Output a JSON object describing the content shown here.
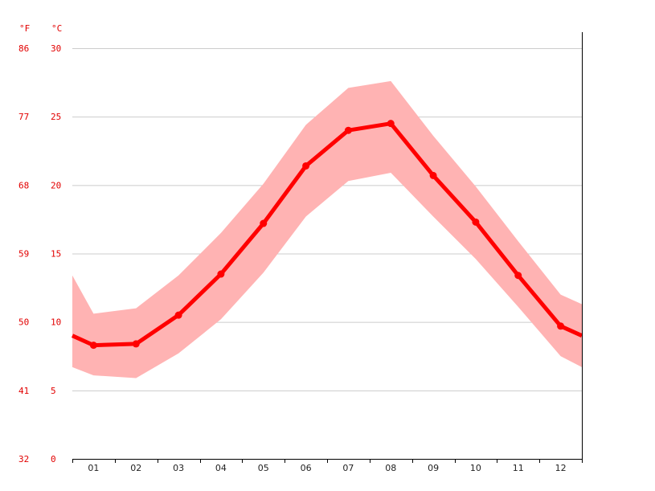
{
  "chart_data": {
    "type": "line",
    "title": "",
    "xlabel": "",
    "ylabel": "",
    "units": {
      "fahrenheit": "°F",
      "celsius": "°C"
    },
    "categories": [
      "01",
      "02",
      "03",
      "04",
      "05",
      "06",
      "07",
      "08",
      "09",
      "10",
      "11",
      "12"
    ],
    "y_ticks_celsius": [
      "30",
      "25",
      "20",
      "15",
      "10",
      "5",
      "0"
    ],
    "y_ticks_fahrenheit": [
      "86",
      "77",
      "68",
      "59",
      "50",
      "41",
      "32"
    ],
    "ylim": [
      0,
      30
    ],
    "grid": true,
    "legend": "none",
    "colors": {
      "line": "#ff0000",
      "band": "#ffb3b3",
      "tick_labels": "#e20000",
      "grid": "#cccccc",
      "axis": "#000000"
    },
    "series": [
      {
        "type": "line",
        "values": [
          8.3,
          8.4,
          10.5,
          13.5,
          17.2,
          21.4,
          24.0,
          24.5,
          20.7,
          17.3,
          13.4,
          9.7
        ]
      },
      {
        "type": "band",
        "upper": [
          10.6,
          11.0,
          13.4,
          16.5,
          20.1,
          24.4,
          27.1,
          27.6,
          23.6,
          19.9,
          15.9,
          12.0
        ],
        "lower": [
          6.1,
          5.9,
          7.7,
          10.2,
          13.6,
          17.7,
          20.3,
          20.9,
          17.7,
          14.6,
          11.1,
          7.5
        ]
      }
    ],
    "edges": {
      "left_x": 0.5,
      "right_x": 12.5,
      "line_left": 9.0,
      "line_right": 9.0,
      "upper_left": 13.4,
      "upper_right": 11.3,
      "lower_left": 6.7,
      "lower_right": 6.7
    }
  }
}
